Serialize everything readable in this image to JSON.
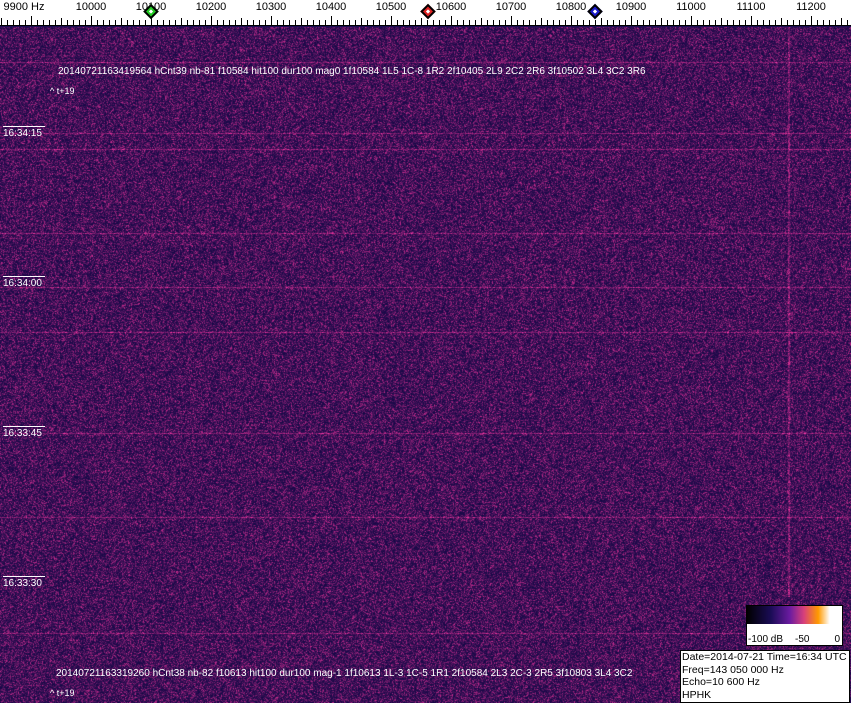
{
  "frequency_axis": {
    "labels": [
      "9900 Hz",
      "10000",
      "10100",
      "10200",
      "10300",
      "10400",
      "10500",
      "10600",
      "10700",
      "10800",
      "10900",
      "11000",
      "11100",
      "11200"
    ],
    "markers": [
      {
        "name": "green",
        "freq_hz": 10100,
        "color": "#22cc22"
      },
      {
        "name": "red",
        "freq_hz": 10562,
        "color": "#dd2222"
      },
      {
        "name": "blue",
        "freq_hz": 10840,
        "color": "#1a1acc"
      }
    ]
  },
  "time_labels": [
    "16:34:15",
    "16:34:00",
    "16:33:45",
    "16:33:30"
  ],
  "detections": [
    {
      "line": "20140721163419564 hCnt39 nb-81 f10584 hit100 dur100 mag0 1f10584 1L5 1C-8 1R2 2f10405 2L9 2C2 2R6 3f10502 3L4 3C2 3R6",
      "offset": "^ t+19"
    },
    {
      "line": "20140721163319260 hCnt38 nb-82 f10613 hit100 dur100 mag-1 1f10613 1L-3 1C-5 1R1 2f10584 2L3 2C-3 2R5 3f10803 3L4 3C2",
      "offset": "^ t+19"
    }
  ],
  "color_scale": {
    "labels": [
      "-100 dB",
      "-50",
      "0"
    ]
  },
  "info": {
    "datetime": "Date=2014-07-21 Time=16:34 UTC",
    "freq": "Freq=143 050 000 Hz",
    "echo": "Echo=10 600 Hz",
    "station": "HPHK"
  }
}
